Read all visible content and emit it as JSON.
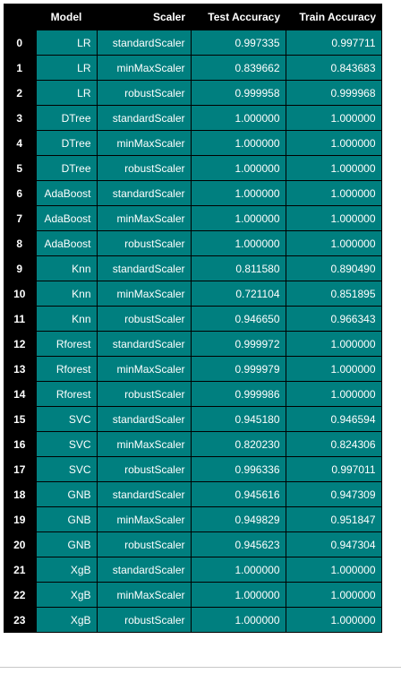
{
  "columns": [
    "Model",
    "Scaler",
    "Test Accuracy",
    "Train Accuracy"
  ],
  "rows": [
    {
      "index": "0",
      "model": "LR",
      "scaler": "standardScaler",
      "test": "0.997335",
      "train": "0.997711"
    },
    {
      "index": "1",
      "model": "LR",
      "scaler": "minMaxScaler",
      "test": "0.839662",
      "train": "0.843683"
    },
    {
      "index": "2",
      "model": "LR",
      "scaler": "robustScaler",
      "test": "0.999958",
      "train": "0.999968"
    },
    {
      "index": "3",
      "model": "DTree",
      "scaler": "standardScaler",
      "test": "1.000000",
      "train": "1.000000"
    },
    {
      "index": "4",
      "model": "DTree",
      "scaler": "minMaxScaler",
      "test": "1.000000",
      "train": "1.000000"
    },
    {
      "index": "5",
      "model": "DTree",
      "scaler": "robustScaler",
      "test": "1.000000",
      "train": "1.000000"
    },
    {
      "index": "6",
      "model": "AdaBoost",
      "scaler": "standardScaler",
      "test": "1.000000",
      "train": "1.000000"
    },
    {
      "index": "7",
      "model": "AdaBoost",
      "scaler": "minMaxScaler",
      "test": "1.000000",
      "train": "1.000000"
    },
    {
      "index": "8",
      "model": "AdaBoost",
      "scaler": "robustScaler",
      "test": "1.000000",
      "train": "1.000000"
    },
    {
      "index": "9",
      "model": "Knn",
      "scaler": "standardScaler",
      "test": "0.811580",
      "train": "0.890490"
    },
    {
      "index": "10",
      "model": "Knn",
      "scaler": "minMaxScaler",
      "test": "0.721104",
      "train": "0.851895"
    },
    {
      "index": "11",
      "model": "Knn",
      "scaler": "robustScaler",
      "test": "0.946650",
      "train": "0.966343"
    },
    {
      "index": "12",
      "model": "Rforest",
      "scaler": "standardScaler",
      "test": "0.999972",
      "train": "1.000000"
    },
    {
      "index": "13",
      "model": "Rforest",
      "scaler": "minMaxScaler",
      "test": "0.999979",
      "train": "1.000000"
    },
    {
      "index": "14",
      "model": "Rforest",
      "scaler": "robustScaler",
      "test": "0.999986",
      "train": "1.000000"
    },
    {
      "index": "15",
      "model": "SVC",
      "scaler": "standardScaler",
      "test": "0.945180",
      "train": "0.946594"
    },
    {
      "index": "16",
      "model": "SVC",
      "scaler": "minMaxScaler",
      "test": "0.820230",
      "train": "0.824306"
    },
    {
      "index": "17",
      "model": "SVC",
      "scaler": "robustScaler",
      "test": "0.996336",
      "train": "0.997011"
    },
    {
      "index": "18",
      "model": "GNB",
      "scaler": "standardScaler",
      "test": "0.945616",
      "train": "0.947309"
    },
    {
      "index": "19",
      "model": "GNB",
      "scaler": "minMaxScaler",
      "test": "0.949829",
      "train": "0.951847"
    },
    {
      "index": "20",
      "model": "GNB",
      "scaler": "robustScaler",
      "test": "0.945623",
      "train": "0.947304"
    },
    {
      "index": "21",
      "model": "XgB",
      "scaler": "standardScaler",
      "test": "1.000000",
      "train": "1.000000"
    },
    {
      "index": "22",
      "model": "XgB",
      "scaler": "minMaxScaler",
      "test": "1.000000",
      "train": "1.000000"
    },
    {
      "index": "23",
      "model": "XgB",
      "scaler": "robustScaler",
      "test": "1.000000",
      "train": "1.000000"
    }
  ],
  "colors": {
    "cell_background": "#007f7f",
    "header_background": "#000000",
    "text": "#ffffff"
  }
}
